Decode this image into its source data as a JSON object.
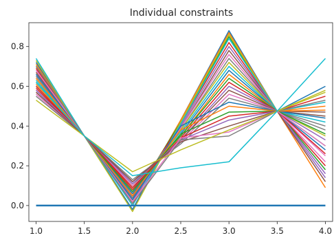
{
  "chart_data": {
    "type": "line",
    "title": "Individual constraints",
    "xlabel": "",
    "ylabel": "",
    "xlim": [
      0.925,
      4.075
    ],
    "ylim": [
      -0.08,
      0.92
    ],
    "x_ticks": [
      1.0,
      1.5,
      2.0,
      2.5,
      3.0,
      3.5,
      4.0
    ],
    "x_tick_labels": [
      "1.0",
      "1.5",
      "2.0",
      "2.5",
      "3.0",
      "3.5",
      "4.0"
    ],
    "y_ticks": [
      0.0,
      0.2,
      0.4,
      0.6,
      0.8
    ],
    "y_tick_labels": [
      "0.0",
      "0.2",
      "0.4",
      "0.6",
      "0.8"
    ],
    "grid": false,
    "legend": "none",
    "x": [
      1.0,
      1.5,
      2.0,
      2.5,
      3.0,
      3.5,
      4.0
    ],
    "palette": [
      "#1f77b4",
      "#ff7f0e",
      "#2ca02c",
      "#d62728",
      "#9467bd",
      "#8c564b",
      "#e377c2",
      "#7f7f7f",
      "#bcbd22",
      "#17becf"
    ],
    "series": [
      {
        "values": [
          0.72,
          0.35,
          -0.02,
          0.43,
          0.88,
          0.475,
          0.6
        ]
      },
      {
        "values": [
          0.71,
          0.35,
          0.01,
          0.43,
          0.87,
          0.475,
          0.09
        ]
      },
      {
        "values": [
          0.7,
          0.35,
          0.03,
          0.42,
          0.85,
          0.475,
          0.3
        ]
      },
      {
        "values": [
          0.69,
          0.35,
          0.04,
          0.41,
          0.82,
          0.475,
          0.2
        ]
      },
      {
        "values": [
          0.68,
          0.35,
          0.02,
          0.4,
          0.8,
          0.475,
          0.14
        ]
      },
      {
        "values": [
          0.67,
          0.35,
          0.05,
          0.39,
          0.78,
          0.475,
          0.45
        ]
      },
      {
        "values": [
          0.66,
          0.35,
          0.06,
          0.39,
          0.76,
          0.475,
          0.25
        ]
      },
      {
        "values": [
          0.65,
          0.35,
          0.04,
          0.38,
          0.74,
          0.475,
          0.4
        ]
      },
      {
        "values": [
          0.64,
          0.35,
          0.07,
          0.38,
          0.72,
          0.475,
          0.35
        ]
      },
      {
        "values": [
          0.63,
          0.35,
          0.08,
          0.37,
          0.7,
          0.475,
          0.42
        ]
      },
      {
        "values": [
          0.62,
          0.35,
          0.06,
          0.36,
          0.68,
          0.475,
          0.28
        ]
      },
      {
        "values": [
          0.61,
          0.35,
          0.09,
          0.35,
          0.66,
          0.475,
          0.5
        ]
      },
      {
        "values": [
          0.6,
          0.35,
          0.1,
          0.35,
          0.64,
          0.475,
          0.18
        ]
      },
      {
        "values": [
          0.59,
          0.35,
          0.08,
          0.34,
          0.62,
          0.475,
          0.55
        ]
      },
      {
        "values": [
          0.58,
          0.35,
          0.11,
          0.33,
          0.6,
          0.475,
          0.33
        ]
      },
      {
        "values": [
          0.57,
          0.35,
          0.12,
          0.33,
          0.58,
          0.475,
          0.47
        ]
      },
      {
        "values": [
          0.56,
          0.35,
          0.1,
          0.32,
          0.56,
          0.475,
          0.22
        ]
      },
      {
        "values": [
          0.55,
          0.35,
          0.13,
          0.31,
          0.54,
          0.475,
          0.38
        ]
      },
      {
        "values": [
          0.73,
          0.35,
          -0.03,
          0.42,
          0.86,
          0.475,
          0.58
        ]
      },
      {
        "values": [
          0.74,
          0.35,
          0.0,
          0.41,
          0.84,
          0.475,
          0.52
        ]
      },
      {
        "values": [
          0.66,
          0.35,
          0.03,
          0.4,
          0.52,
          0.475,
          0.44
        ]
      },
      {
        "values": [
          0.64,
          0.35,
          0.05,
          0.38,
          0.5,
          0.475,
          0.48
        ]
      },
      {
        "values": [
          0.62,
          0.35,
          0.07,
          0.36,
          0.47,
          0.475,
          0.36
        ]
      },
      {
        "values": [
          0.6,
          0.35,
          0.09,
          0.34,
          0.45,
          0.475,
          0.26
        ]
      },
      {
        "values": [
          0.58,
          0.35,
          0.11,
          0.33,
          0.43,
          0.475,
          0.16
        ]
      },
      {
        "values": [
          0.57,
          0.35,
          0.12,
          0.32,
          0.4,
          0.475,
          0.12
        ]
      },
      {
        "values": [
          0.68,
          0.35,
          0.02,
          0.34,
          0.37,
          0.475,
          0.3
        ]
      },
      {
        "values": [
          0.7,
          0.35,
          0.01,
          0.33,
          0.35,
          0.475,
          0.53
        ]
      },
      {
        "values": [
          0.53,
          0.35,
          0.17,
          0.28,
          0.38,
          0.475,
          0.57
        ]
      },
      {
        "values": [
          0.62,
          0.35,
          0.15,
          0.19,
          0.22,
          0.475,
          0.74
        ]
      },
      {
        "values": [
          0.0,
          0.0,
          0.0,
          0.0,
          0.0,
          0.0,
          0.0
        ]
      }
    ]
  }
}
